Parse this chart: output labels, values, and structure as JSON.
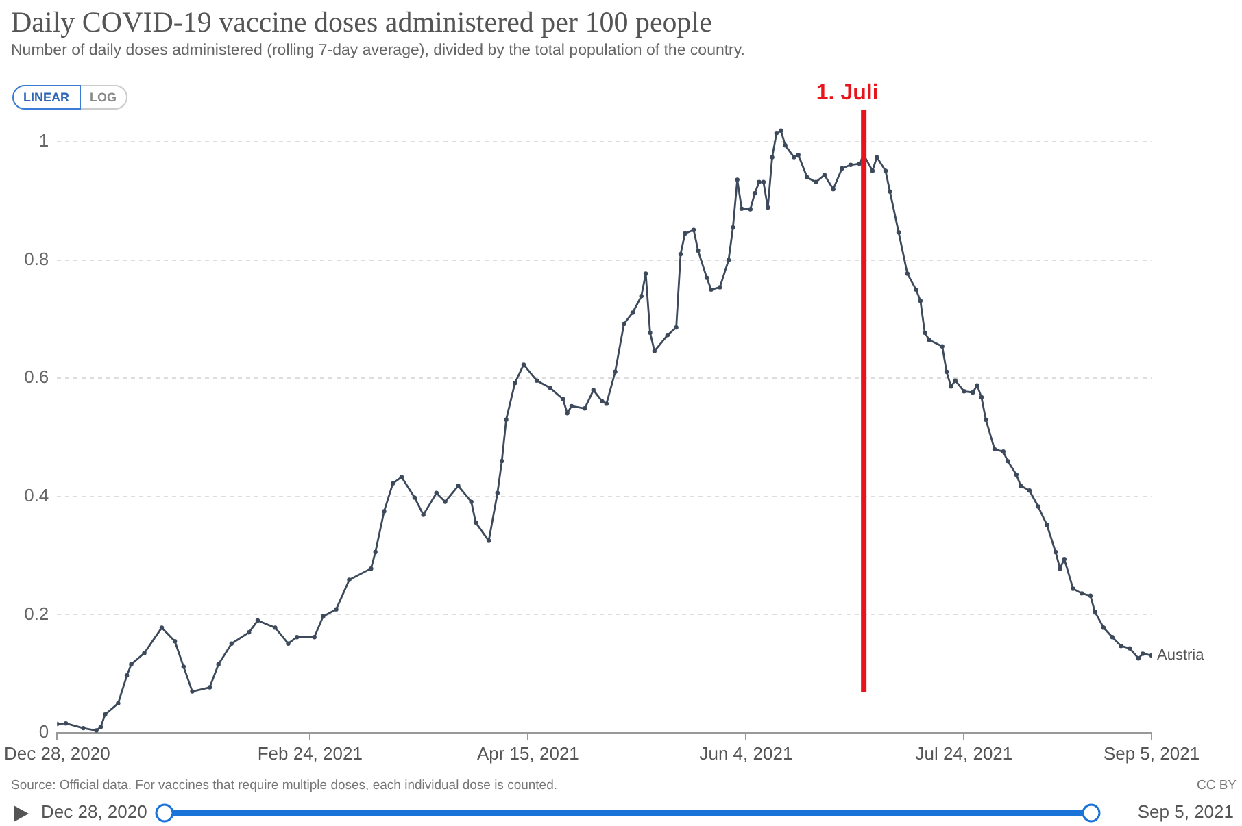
{
  "chart_data": {
    "type": "line",
    "title": "Daily COVID-19 vaccine doses administered per 100 people",
    "subtitle": "Number of daily doses administered (rolling 7-day average), divided by the total population of the country.",
    "x": [
      "2020-12-28",
      "2020-12-30",
      "2021-01-03",
      "2021-01-06",
      "2021-01-07",
      "2021-01-08",
      "2021-01-11",
      "2021-01-13",
      "2021-01-14",
      "2021-01-17",
      "2021-01-21",
      "2021-01-24",
      "2021-01-26",
      "2021-01-28",
      "2021-02-01",
      "2021-02-03",
      "2021-02-06",
      "2021-02-10",
      "2021-02-12",
      "2021-02-16",
      "2021-02-19",
      "2021-02-21",
      "2021-02-25",
      "2021-02-27",
      "2021-03-02",
      "2021-03-05",
      "2021-03-10",
      "2021-03-11",
      "2021-03-13",
      "2021-03-15",
      "2021-03-17",
      "2021-03-20",
      "2021-03-22",
      "2021-03-25",
      "2021-03-27",
      "2021-03-30",
      "2021-04-02",
      "2021-04-03",
      "2021-04-06",
      "2021-04-08",
      "2021-04-09",
      "2021-04-10",
      "2021-04-12",
      "2021-04-14",
      "2021-04-17",
      "2021-04-20",
      "2021-04-23",
      "2021-04-24",
      "2021-04-25",
      "2021-04-28",
      "2021-04-30",
      "2021-05-02",
      "2021-05-03",
      "2021-05-05",
      "2021-05-07",
      "2021-05-09",
      "2021-05-11",
      "2021-05-12",
      "2021-05-13",
      "2021-05-14",
      "2021-05-17",
      "2021-05-19",
      "2021-05-20",
      "2021-05-21",
      "2021-05-23",
      "2021-05-24",
      "2021-05-26",
      "2021-05-27",
      "2021-05-29",
      "2021-05-31",
      "2021-06-01",
      "2021-06-02",
      "2021-06-03",
      "2021-06-05",
      "2021-06-06",
      "2021-06-07",
      "2021-06-08",
      "2021-06-09",
      "2021-06-10",
      "2021-06-11",
      "2021-06-12",
      "2021-06-13",
      "2021-06-15",
      "2021-06-16",
      "2021-06-18",
      "2021-06-20",
      "2021-06-22",
      "2021-06-24",
      "2021-06-26",
      "2021-06-28",
      "2021-06-30",
      "2021-07-01",
      "2021-07-03",
      "2021-07-04",
      "2021-07-06",
      "2021-07-07",
      "2021-07-09",
      "2021-07-11",
      "2021-07-13",
      "2021-07-14",
      "2021-07-15",
      "2021-07-16",
      "2021-07-19",
      "2021-07-20",
      "2021-07-21",
      "2021-07-22",
      "2021-07-24",
      "2021-07-26",
      "2021-07-27",
      "2021-07-28",
      "2021-07-29",
      "2021-07-31",
      "2021-08-02",
      "2021-08-03",
      "2021-08-05",
      "2021-08-06",
      "2021-08-08",
      "2021-08-10",
      "2021-08-12",
      "2021-08-14",
      "2021-08-15",
      "2021-08-16",
      "2021-08-18",
      "2021-08-20",
      "2021-08-22",
      "2021-08-23",
      "2021-08-25",
      "2021-08-27",
      "2021-08-29",
      "2021-08-31",
      "2021-09-02",
      "2021-09-03",
      "2021-09-05"
    ],
    "series": [
      {
        "name": "Austria",
        "color": "#3d4a5c",
        "values": [
          0.015,
          0.016,
          0.008,
          0.004,
          0.01,
          0.031,
          0.05,
          0.097,
          0.116,
          0.135,
          0.178,
          0.155,
          0.112,
          0.07,
          0.077,
          0.116,
          0.151,
          0.17,
          0.19,
          0.178,
          0.151,
          0.162,
          0.162,
          0.197,
          0.209,
          0.259,
          0.278,
          0.306,
          0.375,
          0.422,
          0.433,
          0.398,
          0.369,
          0.406,
          0.391,
          0.418,
          0.391,
          0.356,
          0.325,
          0.406,
          0.46,
          0.53,
          0.592,
          0.623,
          0.596,
          0.584,
          0.565,
          0.541,
          0.553,
          0.549,
          0.58,
          0.561,
          0.557,
          0.611,
          0.692,
          0.711,
          0.739,
          0.777,
          0.677,
          0.646,
          0.673,
          0.686,
          0.81,
          0.845,
          0.851,
          0.816,
          0.77,
          0.75,
          0.754,
          0.8,
          0.855,
          0.936,
          0.887,
          0.886,
          0.913,
          0.932,
          0.932,
          0.889,
          0.974,
          1.015,
          1.019,
          0.994,
          0.974,
          0.978,
          0.94,
          0.932,
          0.944,
          0.92,
          0.955,
          0.961,
          0.963,
          0.978,
          0.951,
          0.974,
          0.951,
          0.916,
          0.847,
          0.777,
          0.75,
          0.731,
          0.677,
          0.665,
          0.654,
          0.611,
          0.586,
          0.596,
          0.578,
          0.576,
          0.588,
          0.568,
          0.53,
          0.48,
          0.476,
          0.46,
          0.437,
          0.418,
          0.41,
          0.383,
          0.352,
          0.306,
          0.278,
          0.294,
          0.244,
          0.236,
          0.232,
          0.205,
          0.178,
          0.162,
          0.147,
          0.143,
          0.126,
          0.134,
          0.131
        ]
      }
    ],
    "xlim": [
      "2020-12-28",
      "2021-09-05"
    ],
    "xticks": [
      {
        "value": "2020-12-28",
        "label": "Dec 28, 2020"
      },
      {
        "value": "2021-02-24",
        "label": "Feb 24, 2021"
      },
      {
        "value": "2021-04-15",
        "label": "Apr 15, 2021"
      },
      {
        "value": "2021-06-04",
        "label": "Jun 4, 2021"
      },
      {
        "value": "2021-07-24",
        "label": "Jul 24, 2021"
      },
      {
        "value": "2021-09-05",
        "label": "Sep 5, 2021"
      }
    ],
    "ylim": [
      0,
      1.05
    ],
    "yticks": [
      0,
      0.2,
      0.4,
      0.6,
      0.8,
      1
    ],
    "grid": "y",
    "marker": "circle",
    "line_style": "solid",
    "ref_lines": [
      {
        "axis": "x",
        "value": "2021-07-01",
        "label": "1. Juli",
        "color": "#e8141c"
      }
    ],
    "annotations": [
      "LINEAR",
      "LOG",
      "Source: Official data. For vaccines that require multiple doses, each individual dose is counted.",
      "CC BY",
      "Dec 28, 2020",
      "Sep 5, 2021"
    ]
  }
}
